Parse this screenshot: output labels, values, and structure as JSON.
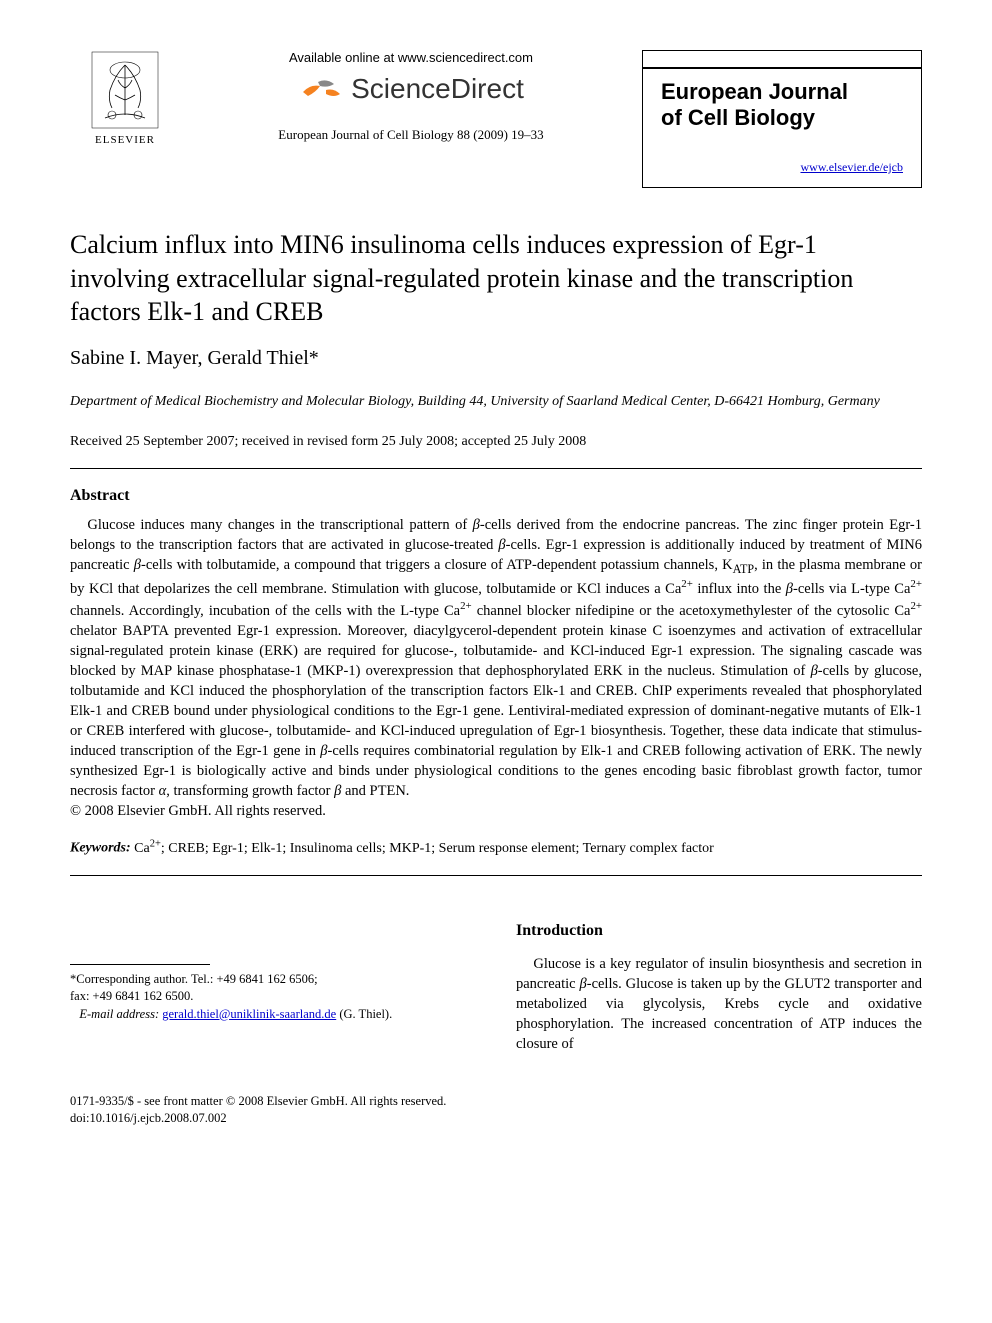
{
  "header": {
    "elsevier_label": "ELSEVIER",
    "available_text": "Available online at www.sciencedirect.com",
    "sciencedirect_text": "ScienceDirect",
    "citation": "European Journal of Cell Biology 88 (2009) 19–33",
    "journal_name_line1": "European Journal",
    "journal_name_line2": "of Cell Biology",
    "journal_url": "www.elsevier.de/ejcb"
  },
  "title": "Calcium influx into MIN6 insulinoma cells induces expression of Egr-1 involving extracellular signal-regulated protein kinase and the transcription factors Elk-1 and CREB",
  "authors": "Sabine I. Mayer, Gerald Thiel*",
  "affiliation": "Department of Medical Biochemistry and Molecular Biology, Building 44, University of Saarland Medical Center, D-66421 Homburg, Germany",
  "dates": "Received 25 September 2007; received in revised form 25 July 2008; accepted 25 July 2008",
  "abstract_heading": "Abstract",
  "abstract_html": "Glucose induces many changes in the transcriptional pattern of <span class=\"beta\">β</span>-cells derived from the endocrine pancreas. The zinc finger protein Egr-1 belongs to the transcription factors that are activated in glucose-treated <span class=\"beta\">β</span>-cells. Egr-1 expression is additionally induced by treatment of MIN6 pancreatic <span class=\"beta\">β</span>-cells with tolbutamide, a compound that triggers a closure of ATP-dependent potassium channels, K<sub>ATP</sub>, in the plasma membrane or by KCl that depolarizes the cell membrane. Stimulation with glucose, tolbutamide or KCl induces a Ca<sup>2+</sup> influx into the <span class=\"beta\">β</span>-cells via L-type Ca<sup>2+</sup> channels. Accordingly, incubation of the cells with the L-type Ca<sup>2+</sup> channel blocker nifedipine or the acetoxymethylester of the cytosolic Ca<sup>2+</sup> chelator BAPTA prevented Egr-1 expression. Moreover, diacylgycerol-dependent protein kinase C isoenzymes and activation of extracellular signal-regulated protein kinase (ERK) are required for glucose-, tolbutamide- and KCl-induced Egr-1 expression. The signaling cascade was blocked by MAP kinase phosphatase-1 (MKP-1) overexpression that dephosphorylated ERK in the nucleus. Stimulation of <span class=\"beta\">β</span>-cells by glucose, tolbutamide and KCl induced the phosphorylation of the transcription factors Elk-1 and CREB. ChIP experiments revealed that phosphorylated Elk-1 and CREB bound under physiological conditions to the Egr-1 gene. Lentiviral-mediated expression of dominant-negative mutants of Elk-1 or CREB interfered with glucose-, tolbutamide- and KCl-induced upregulation of Egr-1 biosynthesis. Together, these data indicate that stimulus-induced transcription of the Egr-1 gene in <span class=\"beta\">β</span>-cells requires combinatorial regulation by Elk-1 and CREB following activation of ERK. The newly synthesized Egr-1 is biologically active and binds under physiological conditions to the genes encoding basic fibroblast growth factor, tumor necrosis factor <span class=\"beta\">α</span>, transforming growth factor <span class=\"beta\">β</span> and PTEN.",
  "copyright_line": "© 2008 Elsevier GmbH. All rights reserved.",
  "keywords_label": "Keywords:",
  "keywords_html": "Ca<sup>2+</sup>; CREB; Egr-1; Elk-1; Insulinoma cells; MKP-1; Serum response element; Ternary complex factor",
  "corresponding": {
    "label": "*Corresponding author. Tel.: +49 6841 162 6506;",
    "fax": "fax: +49 6841 162 6500.",
    "email_label": "E-mail address:",
    "email": "gerald.thiel@uniklinik-saarland.de",
    "email_author": "(G. Thiel)."
  },
  "introduction_heading": "Introduction",
  "introduction_html": "Glucose is a key regulator of insulin biosynthesis and secretion in pancreatic <span class=\"beta\">β</span>-cells. Glucose is taken up by the GLUT2 transporter and metabolized via glycolysis, Krebs cycle and oxidative phosphorylation. The increased concentration of ATP induces the closure of",
  "footer": {
    "front_matter": "0171-9335/$ - see front matter © 2008 Elsevier GmbH. All rights reserved.",
    "doi": "doi:10.1016/j.ejcb.2008.07.002"
  },
  "colors": {
    "text": "#000000",
    "link": "#0000cc",
    "background": "#ffffff",
    "orange": "#f58220",
    "sd_gray": "#333333"
  }
}
